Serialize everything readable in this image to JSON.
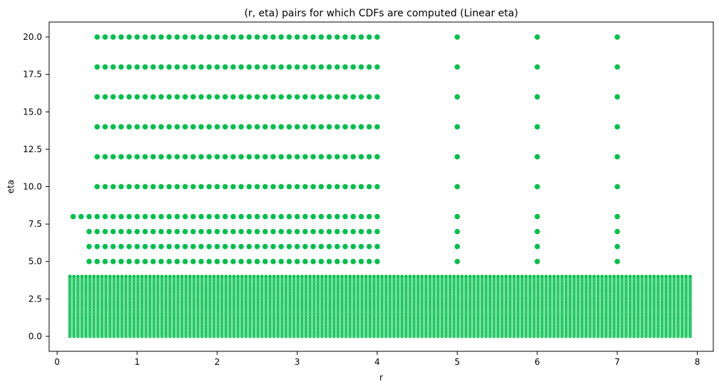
{
  "chart_data": {
    "type": "scatter",
    "title": "(r, eta) pairs for which CDFs are computed (Linear eta)",
    "xlabel": "r",
    "ylabel": "eta",
    "xlim": [
      -0.1,
      8.2
    ],
    "ylim": [
      -1.0,
      21.0
    ],
    "xticks": [
      0,
      1,
      2,
      3,
      4,
      5,
      6,
      7,
      8
    ],
    "yticks": [
      0.0,
      2.5,
      5.0,
      7.5,
      10.0,
      12.5,
      15.0,
      17.5,
      20.0
    ],
    "xtick_labels": [
      "0",
      "1",
      "2",
      "3",
      "4",
      "5",
      "6",
      "7",
      "8"
    ],
    "ytick_labels": [
      "0.0",
      "2.5",
      "5.0",
      "7.5",
      "10.0",
      "12.5",
      "15.0",
      "17.5",
      "20.0"
    ],
    "grid": false,
    "legend": "none",
    "point_color": "#00C04B",
    "point_edge_color": "#ffffff",
    "series": [
      {
        "description_key": "dense_low_eta",
        "r_start": 0.16,
        "r_step": 0.05,
        "r_end": 7.91,
        "eta_start": 0.0,
        "eta_step": 0.1,
        "eta_end": 4.0
      },
      {
        "description_key": "eta_8_row",
        "eta": 8.0,
        "r_start": 0.2,
        "r_step": 0.1,
        "r_end": 4.0
      },
      {
        "description_key": "mid_rows",
        "etas": [
          5.0,
          6.0,
          7.0
        ],
        "r_start": 0.4,
        "r_step": 0.1,
        "r_end": 4.0
      },
      {
        "description_key": "high_rows",
        "etas": [
          10.0,
          12.0,
          14.0,
          16.0,
          18.0,
          20.0
        ],
        "r_start": 0.5,
        "r_step": 0.1,
        "r_end": 4.0
      },
      {
        "description_key": "vertical_columns",
        "rs": [
          5.0,
          6.0,
          7.0
        ],
        "etas": [
          5.0,
          6.0,
          7.0,
          8.0,
          10.0,
          12.0,
          14.0,
          16.0,
          18.0,
          20.0
        ]
      }
    ]
  }
}
